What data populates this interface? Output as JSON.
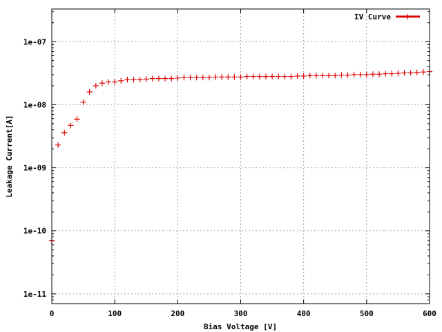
{
  "chart_data": {
    "type": "scatter",
    "xlabel": "Bias Voltage [V]",
    "ylabel": "Leakage Current[A]",
    "xlim": [
      0,
      600
    ],
    "ylim": [
      7e-12,
      3.3e-07
    ],
    "yscale": "log",
    "grid": true,
    "legend_position": "top-right",
    "x_ticks": [
      {
        "value": 0,
        "label": "0"
      },
      {
        "value": 100,
        "label": "100"
      },
      {
        "value": 200,
        "label": "200"
      },
      {
        "value": 300,
        "label": "300"
      },
      {
        "value": 400,
        "label": "400"
      },
      {
        "value": 500,
        "label": "500"
      },
      {
        "value": 600,
        "label": "600"
      }
    ],
    "y_ticks": [
      {
        "value": 1e-11,
        "label": "1e-11"
      },
      {
        "value": 1e-10,
        "label": "1e-10"
      },
      {
        "value": 1e-09,
        "label": "1e-09"
      },
      {
        "value": 1e-08,
        "label": "1e-08"
      },
      {
        "value": 1e-07,
        "label": "1e-07"
      }
    ],
    "series": [
      {
        "name": "IV Curve",
        "color": "#dd0000",
        "marker": "plus",
        "x": [
          0,
          10,
          20,
          30,
          40,
          50,
          60,
          70,
          80,
          90,
          100,
          110,
          120,
          130,
          140,
          150,
          160,
          170,
          180,
          190,
          200,
          210,
          220,
          230,
          240,
          250,
          260,
          270,
          280,
          290,
          300,
          310,
          320,
          330,
          340,
          350,
          360,
          370,
          380,
          390,
          400,
          410,
          420,
          430,
          440,
          450,
          460,
          470,
          480,
          490,
          500,
          510,
          520,
          530,
          540,
          550,
          560,
          570,
          580,
          590,
          600
        ],
        "y": [
          7e-11,
          2.3e-09,
          3.6e-09,
          4.7e-09,
          5.9e-09,
          1.1e-08,
          1.6e-08,
          2e-08,
          2.2e-08,
          2.3e-08,
          2.3e-08,
          2.4e-08,
          2.5e-08,
          2.5e-08,
          2.5e-08,
          2.55e-08,
          2.6e-08,
          2.6e-08,
          2.6e-08,
          2.6e-08,
          2.65e-08,
          2.7e-08,
          2.7e-08,
          2.7e-08,
          2.7e-08,
          2.7e-08,
          2.75e-08,
          2.75e-08,
          2.75e-08,
          2.75e-08,
          2.75e-08,
          2.8e-08,
          2.8e-08,
          2.8e-08,
          2.8e-08,
          2.8e-08,
          2.8e-08,
          2.8e-08,
          2.8e-08,
          2.85e-08,
          2.85e-08,
          2.9e-08,
          2.9e-08,
          2.9e-08,
          2.9e-08,
          2.9e-08,
          2.95e-08,
          2.95e-08,
          3e-08,
          3e-08,
          3e-08,
          3.05e-08,
          3.05e-08,
          3.1e-08,
          3.1e-08,
          3.15e-08,
          3.2e-08,
          3.2e-08,
          3.25e-08,
          3.3e-08,
          3.35e-08
        ]
      }
    ]
  }
}
